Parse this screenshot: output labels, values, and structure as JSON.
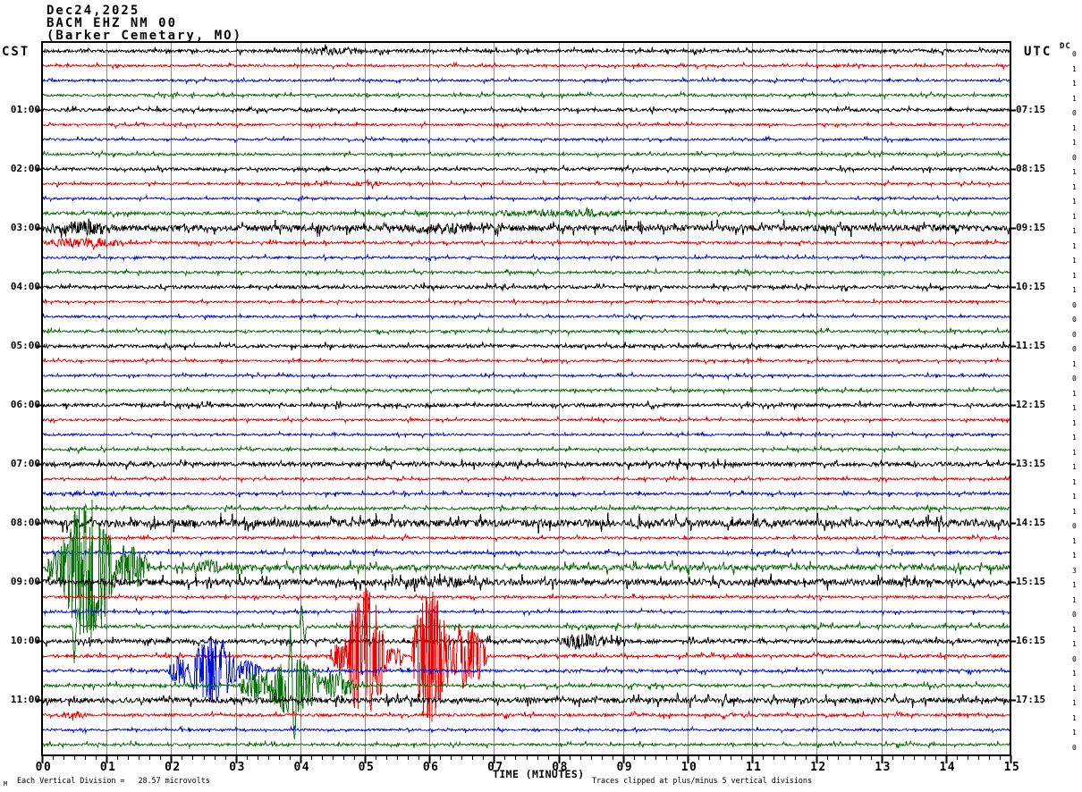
{
  "title": {
    "line1": "Dec24,2025",
    "line2": "BACM EHZ NM 00",
    "line3": "(Barker Cemetary, MO)"
  },
  "footer": {
    "scale_marker": "M",
    "scale_note": "Each Vertical Division =   28.57 microvolts",
    "clip_note": "Traces clipped at plus/minus 5 vertical divisions"
  },
  "chart_data": {
    "type": "line",
    "variant": "helicorder-webicorder",
    "station": "BACM EHZ NM 00",
    "station_location": "(Barker Cemetary, MO)",
    "date": "Dec24,2025",
    "left_axis_header": "CST",
    "right_axis_header": "UTC",
    "dc_header": "DC",
    "x_axis": {
      "title": "TIME (MINUTES)",
      "range_minutes": [
        0,
        15
      ],
      "tick_labels": [
        "00",
        "01",
        "02",
        "03",
        "04",
        "05",
        "06",
        "07",
        "08",
        "09",
        "10",
        "11",
        "12",
        "13",
        "14",
        "15"
      ],
      "minor_ticks_per_minute": 6
    },
    "minutes_per_line": 15,
    "lines_per_hour": 4,
    "clip_divisions": 5,
    "division_microvolts": 28.57,
    "grid_color": "#8a8a8a",
    "border_color": "#000000",
    "trace_colors": {
      "black": "#000000",
      "red": "#f40000",
      "blue": "#0011dd",
      "green": "#0a700a"
    },
    "rows": [
      {
        "color": "black",
        "cst": "",
        "utc": "",
        "dc": 0,
        "noise": 0.1,
        "events": [
          {
            "t0": 4.0,
            "t1": 5.05,
            "amp": 0.22
          }
        ]
      },
      {
        "color": "red",
        "cst": "",
        "utc": "",
        "dc": 1,
        "noise": 0.07,
        "events": []
      },
      {
        "color": "blue",
        "cst": "",
        "utc": "",
        "dc": 1,
        "noise": 0.07,
        "events": []
      },
      {
        "color": "green",
        "cst": "",
        "utc": "",
        "dc": 1,
        "noise": 0.08,
        "events": []
      },
      {
        "color": "black",
        "cst": "01:00",
        "utc": "07:15",
        "dc": 0,
        "noise": 0.09,
        "events": []
      },
      {
        "color": "red",
        "cst": "",
        "utc": "",
        "dc": 1,
        "noise": 0.07,
        "events": []
      },
      {
        "color": "blue",
        "cst": "",
        "utc": "",
        "dc": 1,
        "noise": 0.07,
        "events": []
      },
      {
        "color": "green",
        "cst": "",
        "utc": "",
        "dc": 0,
        "noise": 0.08,
        "events": []
      },
      {
        "color": "black",
        "cst": "02:00",
        "utc": "08:15",
        "dc": 1,
        "noise": 0.09,
        "events": []
      },
      {
        "color": "red",
        "cst": "",
        "utc": "",
        "dc": 1,
        "noise": 0.07,
        "events": [
          {
            "t0": 4.6,
            "t1": 5.4,
            "amp": 0.13
          }
        ]
      },
      {
        "color": "blue",
        "cst": "",
        "utc": "",
        "dc": 1,
        "noise": 0.07,
        "events": []
      },
      {
        "color": "green",
        "cst": "",
        "utc": "",
        "dc": 1,
        "noise": 0.1,
        "events": [
          {
            "t0": 6.6,
            "t1": 9.2,
            "amp": 0.18
          },
          {
            "t0": 8.3,
            "t1": 8.8,
            "amp": 0.22
          }
        ]
      },
      {
        "color": "black",
        "cst": "03:00",
        "utc": "09:15",
        "dc": 1,
        "noise": 0.2,
        "events": [
          {
            "t0": 0.0,
            "t1": 1.2,
            "amp": 0.38
          },
          {
            "t0": 5.5,
            "t1": 7.2,
            "amp": 0.28
          }
        ]
      },
      {
        "color": "red",
        "cst": "",
        "utc": "",
        "dc": 1,
        "noise": 0.08,
        "events": [
          {
            "t0": 0.0,
            "t1": 1.3,
            "amp": 0.3
          }
        ]
      },
      {
        "color": "blue",
        "cst": "",
        "utc": "",
        "dc": 1,
        "noise": 0.07,
        "events": []
      },
      {
        "color": "green",
        "cst": "",
        "utc": "",
        "dc": 1,
        "noise": 0.08,
        "events": []
      },
      {
        "color": "black",
        "cst": "04:00",
        "utc": "10:15",
        "dc": 1,
        "noise": 0.1,
        "events": []
      },
      {
        "color": "red",
        "cst": "",
        "utc": "",
        "dc": 0,
        "noise": 0.07,
        "events": []
      },
      {
        "color": "blue",
        "cst": "",
        "utc": "",
        "dc": 0,
        "noise": 0.07,
        "events": []
      },
      {
        "color": "green",
        "cst": "",
        "utc": "",
        "dc": 0,
        "noise": 0.08,
        "events": []
      },
      {
        "color": "black",
        "cst": "05:00",
        "utc": "11:15",
        "dc": 0,
        "noise": 0.1,
        "events": []
      },
      {
        "color": "red",
        "cst": "",
        "utc": "",
        "dc": 1,
        "noise": 0.07,
        "events": []
      },
      {
        "color": "blue",
        "cst": "",
        "utc": "",
        "dc": 0,
        "noise": 0.07,
        "events": []
      },
      {
        "color": "green",
        "cst": "",
        "utc": "",
        "dc": 1,
        "noise": 0.08,
        "events": []
      },
      {
        "color": "black",
        "cst": "06:00",
        "utc": "12:15",
        "dc": 1,
        "noise": 0.1,
        "events": []
      },
      {
        "color": "red",
        "cst": "",
        "utc": "",
        "dc": 1,
        "noise": 0.07,
        "events": []
      },
      {
        "color": "blue",
        "cst": "",
        "utc": "",
        "dc": 1,
        "noise": 0.07,
        "events": []
      },
      {
        "color": "green",
        "cst": "",
        "utc": "",
        "dc": 1,
        "noise": 0.08,
        "events": []
      },
      {
        "color": "black",
        "cst": "07:00",
        "utc": "13:15",
        "dc": 1,
        "noise": 0.13,
        "events": []
      },
      {
        "color": "red",
        "cst": "",
        "utc": "",
        "dc": 1,
        "noise": 0.07,
        "events": []
      },
      {
        "color": "blue",
        "cst": "",
        "utc": "",
        "dc": 1,
        "noise": 0.08,
        "events": [
          {
            "t0": 0.0,
            "t1": 1.3,
            "amp": 0.12
          }
        ]
      },
      {
        "color": "green",
        "cst": "",
        "utc": "",
        "dc": 1,
        "noise": 0.09,
        "events": []
      },
      {
        "color": "black",
        "cst": "08:00",
        "utc": "14:15",
        "dc": 0,
        "noise": 0.24,
        "events": []
      },
      {
        "color": "red",
        "cst": "",
        "utc": "",
        "dc": 1,
        "noise": 0.08,
        "events": []
      },
      {
        "color": "blue",
        "cst": "",
        "utc": "",
        "dc": 1,
        "noise": 0.1,
        "events": []
      },
      {
        "color": "green",
        "cst": "",
        "utc": "",
        "dc": 3,
        "noise": 0.17,
        "events": [
          {
            "t0": 0.05,
            "t1": 0.4,
            "amp": 1.2
          },
          {
            "t0": 0.28,
            "t1": 1.15,
            "amp": 5
          },
          {
            "t0": 1.1,
            "t1": 1.7,
            "amp": 1.3
          },
          {
            "t0": 2.3,
            "t1": 2.8,
            "amp": 0.5
          }
        ]
      },
      {
        "color": "black",
        "cst": "09:00",
        "utc": "15:15",
        "dc": 1,
        "noise": 0.2,
        "events": [
          {
            "t0": 5.3,
            "t1": 6.7,
            "amp": 0.26
          }
        ]
      },
      {
        "color": "red",
        "cst": "",
        "utc": "",
        "dc": 1,
        "noise": 0.08,
        "events": []
      },
      {
        "color": "blue",
        "cst": "",
        "utc": "",
        "dc": 0,
        "noise": 0.07,
        "events": []
      },
      {
        "color": "green",
        "cst": "",
        "utc": "",
        "dc": 1,
        "noise": 0.1,
        "events": [
          {
            "type": "spike",
            "t": 0.5,
            "amp": -2.6
          },
          {
            "type": "spike",
            "t": 0.56,
            "amp": 1.4
          },
          {
            "type": "spike",
            "t": 0.78,
            "amp": 1.1
          },
          {
            "type": "spike",
            "t": 4.02,
            "amp": 1.6
          },
          {
            "type": "spike",
            "t": 4.07,
            "amp": -1.0
          }
        ]
      },
      {
        "color": "black",
        "cst": "10:00",
        "utc": "16:15",
        "dc": 1,
        "noise": 0.13,
        "events": [
          {
            "t0": 7.95,
            "t1": 8.85,
            "amp": 0.5
          }
        ]
      },
      {
        "color": "red",
        "cst": "",
        "utc": "",
        "dc": 0,
        "noise": 0.09,
        "events": [
          {
            "t0": 4.45,
            "t1": 4.75,
            "amp": 1.1
          },
          {
            "t0": 4.68,
            "t1": 5.35,
            "amp": 4.6
          },
          {
            "t0": 5.3,
            "t1": 5.62,
            "amp": 0.7
          },
          {
            "t0": 5.72,
            "t1": 6.32,
            "amp": 4.6
          },
          {
            "t0": 6.25,
            "t1": 6.9,
            "amp": 2.4
          }
        ]
      },
      {
        "color": "blue",
        "cst": "",
        "utc": "",
        "dc": 1,
        "noise": 0.09,
        "events": [
          {
            "t0": 1.95,
            "t1": 2.35,
            "amp": 1.0
          },
          {
            "t0": 2.2,
            "t1": 3.05,
            "amp": 2.2
          },
          {
            "t0": 2.95,
            "t1": 3.4,
            "amp": 0.8
          }
        ]
      },
      {
        "color": "green",
        "cst": "",
        "utc": "",
        "dc": 1,
        "noise": 0.1,
        "events": [
          {
            "t0": 3.05,
            "t1": 3.6,
            "amp": 1.0
          },
          {
            "t0": 3.45,
            "t1": 4.35,
            "amp": 2.0
          },
          {
            "type": "spike",
            "t": 3.86,
            "amp": 5
          },
          {
            "type": "spike",
            "t": 3.9,
            "amp": -5
          },
          {
            "t0": 4.25,
            "t1": 4.85,
            "amp": 1.0
          }
        ]
      },
      {
        "color": "black",
        "cst": "11:00",
        "utc": "17:15",
        "dc": 1,
        "noise": 0.17,
        "events": []
      },
      {
        "color": "red",
        "cst": "",
        "utc": "",
        "dc": 1,
        "noise": 0.09,
        "events": [
          {
            "t0": 0.25,
            "t1": 0.7,
            "amp": 0.2
          }
        ]
      },
      {
        "color": "blue",
        "cst": "",
        "utc": "",
        "dc": 1,
        "noise": 0.07,
        "events": []
      },
      {
        "color": "green",
        "cst": "",
        "utc": "",
        "dc": 0,
        "noise": 0.08,
        "events": []
      }
    ]
  }
}
